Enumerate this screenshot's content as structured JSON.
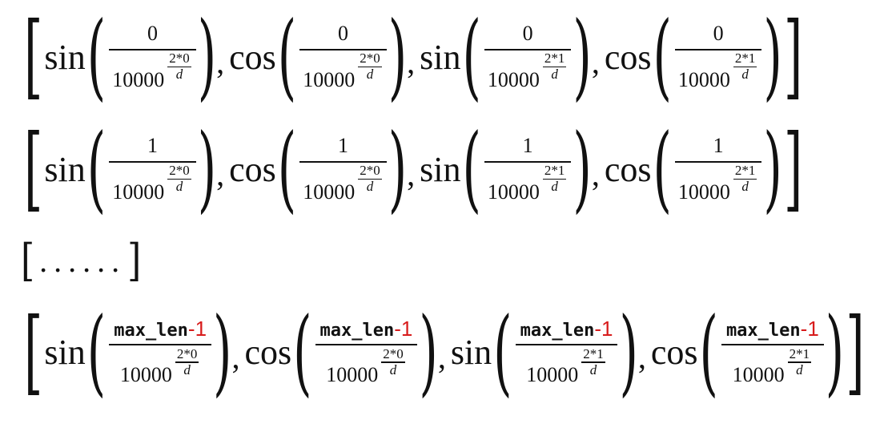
{
  "rows": [
    {
      "terms": [
        {
          "fn": "sin",
          "numerator": "0",
          "base": "10000",
          "exp_num": "2*0",
          "exp_den": "d"
        },
        {
          "fn": "cos",
          "numerator": "0",
          "base": "10000",
          "exp_num": "2*0",
          "exp_den": "d"
        },
        {
          "fn": "sin",
          "numerator": "0",
          "base": "10000",
          "exp_num": "2*1",
          "exp_den": "d"
        },
        {
          "fn": "cos",
          "numerator": "0",
          "base": "10000",
          "exp_num": "2*1",
          "exp_den": "d"
        }
      ]
    },
    {
      "terms": [
        {
          "fn": "sin",
          "numerator": "1",
          "base": "10000",
          "exp_num": "2*0",
          "exp_den": "d"
        },
        {
          "fn": "cos",
          "numerator": "1",
          "base": "10000",
          "exp_num": "2*0",
          "exp_den": "d"
        },
        {
          "fn": "sin",
          "numerator": "1",
          "base": "10000",
          "exp_num": "2*1",
          "exp_den": "d"
        },
        {
          "fn": "cos",
          "numerator": "1",
          "base": "10000",
          "exp_num": "2*1",
          "exp_den": "d"
        }
      ]
    },
    {
      "terms": [
        {
          "fn": "sin",
          "numerator": "max_len",
          "numerator_suffix": "-1",
          "base": "10000",
          "exp_num": "2*0",
          "exp_den": "d"
        },
        {
          "fn": "cos",
          "numerator": "max_len",
          "numerator_suffix": "-1",
          "base": "10000",
          "exp_num": "2*0",
          "exp_den": "d"
        },
        {
          "fn": "sin",
          "numerator": "max_len",
          "numerator_suffix": "-1",
          "base": "10000",
          "exp_num": "2*1",
          "exp_den": "d"
        },
        {
          "fn": "cos",
          "numerator": "max_len",
          "numerator_suffix": "-1",
          "base": "10000",
          "exp_num": "2*1",
          "exp_den": "d"
        }
      ]
    }
  ],
  "ellipsis": {
    "open": "[",
    "dots": "......",
    "close": "]"
  },
  "brackets": {
    "open": "[",
    "close": "]"
  },
  "separator": ",",
  "parens": {
    "open": "(",
    "close": ")"
  },
  "colors": {
    "highlight": "#d81c1c",
    "text": "#111111"
  }
}
